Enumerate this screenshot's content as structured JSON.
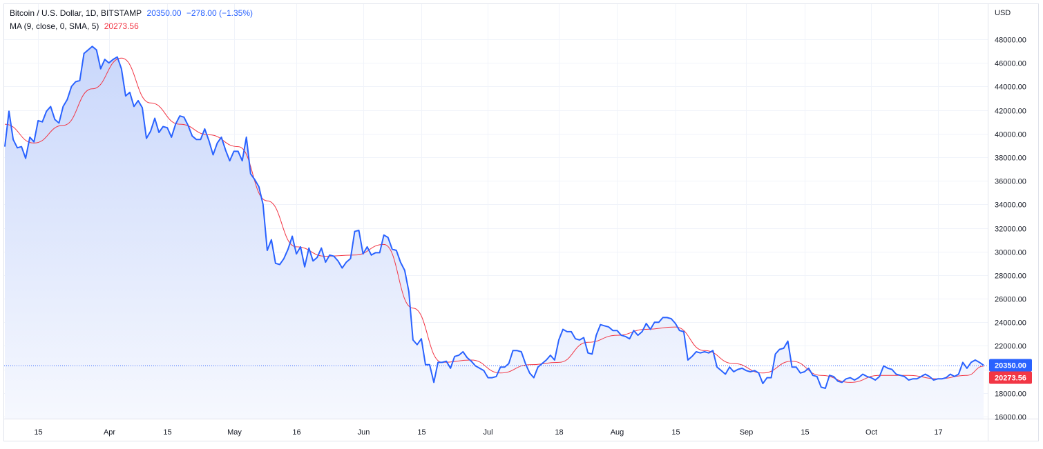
{
  "legend": {
    "symbol": "Bitcoin / U.S. Dollar, 1D, BITSTAMP",
    "last_price": "20350.00",
    "change": "−278.00 (−1.35%)",
    "ma_label": "MA (9, close, 0, SMA, 5)",
    "ma_value": "20273.56"
  },
  "currency_label": "USD",
  "colors": {
    "price_line": "#2962ff",
    "ma_line": "#f23645",
    "area_top": "#c9d7fb",
    "area_bottom": "#f6f8fe",
    "grid": "#f0f3fa",
    "axis_text": "#131722",
    "price_badge": "#2962ff",
    "ma_badge": "#f23645"
  },
  "chart_data": {
    "type": "area",
    "title": "Bitcoin / U.S. Dollar, 1D, BITSTAMP",
    "ylabel": "USD",
    "ylim": [
      15000,
      50000
    ],
    "grid": true,
    "legend_position": "top-left",
    "y_ticks": [
      "16000.00",
      "18000.00",
      "20000.00",
      "22000.00",
      "24000.00",
      "26000.00",
      "28000.00",
      "30000.00",
      "32000.00",
      "34000.00",
      "36000.00",
      "38000.00",
      "40000.00",
      "42000.00",
      "44000.00",
      "46000.00",
      "48000.00"
    ],
    "x_ticks": [
      {
        "label": "15",
        "date": "2022-03-15"
      },
      {
        "label": "Apr",
        "date": "2022-04-01"
      },
      {
        "label": "15",
        "date": "2022-04-15"
      },
      {
        "label": "May",
        "date": "2022-05-01"
      },
      {
        "label": "16",
        "date": "2022-05-16"
      },
      {
        "label": "Jun",
        "date": "2022-06-01"
      },
      {
        "label": "15",
        "date": "2022-06-15"
      },
      {
        "label": "Jul",
        "date": "2022-07-01"
      },
      {
        "label": "18",
        "date": "2022-07-18"
      },
      {
        "label": "Aug",
        "date": "2022-08-01"
      },
      {
        "label": "15",
        "date": "2022-08-15"
      },
      {
        "label": "Sep",
        "date": "2022-09-01"
      },
      {
        "label": "15",
        "date": "2022-09-15"
      },
      {
        "label": "Oct",
        "date": "2022-10-01"
      },
      {
        "label": "17",
        "date": "2022-10-17"
      }
    ],
    "last_price_label": "20350.00",
    "ma_last_label": "20273.56",
    "series": [
      {
        "name": "Bitcoin / U.S. Dollar",
        "dates": [
          "2022-03-07",
          "2022-03-08",
          "2022-03-09",
          "2022-03-10",
          "2022-03-11",
          "2022-03-12",
          "2022-03-13",
          "2022-03-14",
          "2022-03-15",
          "2022-03-16",
          "2022-03-17",
          "2022-03-18",
          "2022-03-19",
          "2022-03-20",
          "2022-03-21",
          "2022-03-22",
          "2022-03-23",
          "2022-03-24",
          "2022-03-25",
          "2022-03-26",
          "2022-03-27",
          "2022-03-28",
          "2022-03-29",
          "2022-03-30",
          "2022-03-31",
          "2022-04-01",
          "2022-04-02",
          "2022-04-03",
          "2022-04-04",
          "2022-04-05",
          "2022-04-06",
          "2022-04-07",
          "2022-04-08",
          "2022-04-09",
          "2022-04-10",
          "2022-04-11",
          "2022-04-12",
          "2022-04-13",
          "2022-04-14",
          "2022-04-15",
          "2022-04-16",
          "2022-04-17",
          "2022-04-18",
          "2022-04-19",
          "2022-04-20",
          "2022-04-21",
          "2022-04-22",
          "2022-04-23",
          "2022-04-24",
          "2022-04-25",
          "2022-04-26",
          "2022-04-27",
          "2022-04-28",
          "2022-04-29",
          "2022-04-30",
          "2022-05-01",
          "2022-05-02",
          "2022-05-03",
          "2022-05-04",
          "2022-05-05",
          "2022-05-06",
          "2022-05-07",
          "2022-05-08",
          "2022-05-09",
          "2022-05-10",
          "2022-05-11",
          "2022-05-12",
          "2022-05-13",
          "2022-05-14",
          "2022-05-15",
          "2022-05-16",
          "2022-05-17",
          "2022-05-18",
          "2022-05-19",
          "2022-05-20",
          "2022-05-21",
          "2022-05-22",
          "2022-05-23",
          "2022-05-24",
          "2022-05-25",
          "2022-05-26",
          "2022-05-27",
          "2022-05-28",
          "2022-05-29",
          "2022-05-30",
          "2022-05-31",
          "2022-06-01",
          "2022-06-02",
          "2022-06-03",
          "2022-06-04",
          "2022-06-05",
          "2022-06-06",
          "2022-06-07",
          "2022-06-08",
          "2022-06-09",
          "2022-06-10",
          "2022-06-11",
          "2022-06-12",
          "2022-06-13",
          "2022-06-14",
          "2022-06-15",
          "2022-06-16",
          "2022-06-17",
          "2022-06-18",
          "2022-06-19",
          "2022-06-20",
          "2022-06-21",
          "2022-06-22",
          "2022-06-23",
          "2022-06-24",
          "2022-06-25",
          "2022-06-26",
          "2022-06-27",
          "2022-06-28",
          "2022-06-29",
          "2022-06-30",
          "2022-07-01",
          "2022-07-02",
          "2022-07-03",
          "2022-07-04",
          "2022-07-05",
          "2022-07-06",
          "2022-07-07",
          "2022-07-08",
          "2022-07-09",
          "2022-07-10",
          "2022-07-11",
          "2022-07-12",
          "2022-07-13",
          "2022-07-14",
          "2022-07-15",
          "2022-07-16",
          "2022-07-17",
          "2022-07-18",
          "2022-07-19",
          "2022-07-20",
          "2022-07-21",
          "2022-07-22",
          "2022-07-23",
          "2022-07-24",
          "2022-07-25",
          "2022-07-26",
          "2022-07-27",
          "2022-07-28",
          "2022-07-29",
          "2022-07-30",
          "2022-07-31",
          "2022-08-01",
          "2022-08-02",
          "2022-08-03",
          "2022-08-04",
          "2022-08-05",
          "2022-08-06",
          "2022-08-07",
          "2022-08-08",
          "2022-08-09",
          "2022-08-10",
          "2022-08-11",
          "2022-08-12",
          "2022-08-13",
          "2022-08-14",
          "2022-08-15",
          "2022-08-16",
          "2022-08-17",
          "2022-08-18",
          "2022-08-19",
          "2022-08-20",
          "2022-08-21",
          "2022-08-22",
          "2022-08-23",
          "2022-08-24",
          "2022-08-25",
          "2022-08-26",
          "2022-08-27",
          "2022-08-28",
          "2022-08-29",
          "2022-08-30",
          "2022-08-31",
          "2022-09-01",
          "2022-09-02",
          "2022-09-03",
          "2022-09-04",
          "2022-09-05",
          "2022-09-06",
          "2022-09-07",
          "2022-09-08",
          "2022-09-09",
          "2022-09-10",
          "2022-09-11",
          "2022-09-12",
          "2022-09-13",
          "2022-09-14",
          "2022-09-15",
          "2022-09-16",
          "2022-09-17",
          "2022-09-18",
          "2022-09-19",
          "2022-09-20",
          "2022-09-21",
          "2022-09-22",
          "2022-09-23",
          "2022-09-24",
          "2022-09-25",
          "2022-09-26",
          "2022-09-27",
          "2022-09-28",
          "2022-09-29",
          "2022-09-30",
          "2022-10-01",
          "2022-10-02",
          "2022-10-03",
          "2022-10-04",
          "2022-10-05",
          "2022-10-06",
          "2022-10-07",
          "2022-10-08",
          "2022-10-09",
          "2022-10-10",
          "2022-10-11",
          "2022-10-12",
          "2022-10-13",
          "2022-10-14",
          "2022-10-15",
          "2022-10-16",
          "2022-10-17",
          "2022-10-18",
          "2022-10-19",
          "2022-10-20",
          "2022-10-21",
          "2022-10-22",
          "2022-10-23",
          "2022-10-24",
          "2022-10-25",
          "2022-10-26",
          "2022-10-27",
          "2022-10-28"
        ],
        "values": [
          38900,
          41900,
          39500,
          38800,
          38900,
          37900,
          39700,
          39300,
          41100,
          41000,
          41900,
          42300,
          41200,
          40900,
          42300,
          42900,
          44000,
          44400,
          44500,
          46800,
          47100,
          47400,
          47100,
          45500,
          46300,
          46000,
          46300,
          46500,
          45500,
          43200,
          43500,
          42300,
          42800,
          42200,
          39600,
          40200,
          41300,
          40100,
          40600,
          40500,
          39700,
          40800,
          41500,
          41400,
          40700,
          39800,
          39500,
          39500,
          40400,
          39400,
          38200,
          39200,
          39700,
          38600,
          37700,
          38500,
          38500,
          37700,
          39700,
          36600,
          36100,
          35500,
          34000,
          30100,
          31000,
          29000,
          28900,
          29400,
          30200,
          31300,
          29800,
          30400,
          28700,
          30300,
          29200,
          29500,
          30300,
          29100,
          29700,
          29600,
          29200,
          28600,
          29100,
          29400,
          31700,
          31800,
          29800,
          30400,
          29700,
          29900,
          29900,
          31400,
          31200,
          30200,
          30100,
          29100,
          28400,
          26600,
          22500,
          22100,
          22600,
          20400,
          20400,
          18900,
          20600,
          20600,
          20700,
          20100,
          21100,
          21200,
          21500,
          21000,
          20700,
          20300,
          20100,
          19900,
          19300,
          19300,
          19400,
          20200,
          20200,
          20500,
          21600,
          21600,
          21500,
          20500,
          19700,
          19300,
          20200,
          20500,
          20800,
          21200,
          20800,
          22500,
          23400,
          23200,
          23200,
          22600,
          22500,
          22700,
          21400,
          21300,
          22900,
          23800,
          23700,
          23600,
          23300,
          23300,
          22900,
          22800,
          22600,
          23300,
          22900,
          23200,
          23900,
          23400,
          24000,
          24000,
          24400,
          24400,
          24300,
          23900,
          23300,
          23200,
          20800,
          21100,
          21500,
          21400,
          21500,
          21400,
          21600,
          20200,
          19900,
          19600,
          20200,
          19800,
          20000,
          20100,
          19900,
          19800,
          19900,
          19700,
          18800,
          19300,
          19300,
          21300,
          21700,
          21800,
          22400,
          20200,
          20200,
          19700,
          19800,
          20100,
          19500,
          19400,
          18500,
          18400,
          19500,
          19400,
          19000,
          18900,
          19200,
          19300,
          19100,
          19300,
          19600,
          19400,
          19300,
          19100,
          19400,
          20300,
          20100,
          20000,
          19600,
          19500,
          19400,
          19100,
          19200,
          19200,
          19400,
          19600,
          19400,
          19100,
          19200,
          19200,
          19300,
          19600,
          19400,
          19600,
          20600,
          20100,
          20600,
          20800,
          20600,
          20350
        ]
      },
      {
        "name": "MA (9, close, 0, SMA, 5)",
        "dates": [
          "2022-03-07",
          "2022-03-14",
          "2022-03-21",
          "2022-03-28",
          "2022-04-04",
          "2022-04-11",
          "2022-04-18",
          "2022-04-25",
          "2022-05-02",
          "2022-05-09",
          "2022-05-16",
          "2022-05-23",
          "2022-05-30",
          "2022-06-06",
          "2022-06-13",
          "2022-06-20",
          "2022-06-27",
          "2022-07-04",
          "2022-07-11",
          "2022-07-18",
          "2022-07-25",
          "2022-08-01",
          "2022-08-08",
          "2022-08-15",
          "2022-08-22",
          "2022-08-29",
          "2022-09-05",
          "2022-09-12",
          "2022-09-19",
          "2022-09-26",
          "2022-10-03",
          "2022-10-10",
          "2022-10-17",
          "2022-10-24",
          "2022-10-28"
        ],
        "values": [
          40800,
          39200,
          40700,
          43800,
          46400,
          42600,
          40800,
          39900,
          38900,
          34300,
          30400,
          29600,
          29700,
          30600,
          25200,
          20600,
          20800,
          19700,
          20400,
          20600,
          22300,
          22900,
          23400,
          23600,
          21600,
          20500,
          19700,
          20700,
          19500,
          18900,
          19500,
          19500,
          19200,
          19500,
          20273.56
        ]
      }
    ]
  }
}
